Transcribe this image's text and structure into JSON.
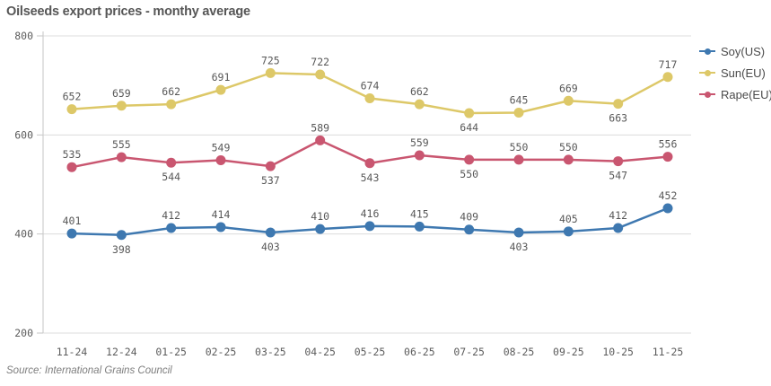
{
  "title": "Oilseeds export prices - monthy average",
  "source": "Source: International Grains Council",
  "legend": [
    {
      "label": "Soy(US)",
      "color": "#3e78b0"
    },
    {
      "label": "Sun(EU)",
      "color": "#ddc868"
    },
    {
      "label": "Rape(EU)",
      "color": "#c95670"
    }
  ],
  "colors": {
    "gridline": "#dcdcdc",
    "axis": "#c6c6c6",
    "tick": "#c6c6c6"
  },
  "chart_data": {
    "type": "line",
    "title": "Oilseeds export prices - monthy average",
    "categories": [
      "11-24",
      "12-24",
      "01-25",
      "02-25",
      "03-25",
      "04-25",
      "05-25",
      "06-25",
      "07-25",
      "08-25",
      "09-25",
      "10-25",
      "11-25"
    ],
    "series": [
      {
        "name": "Soy(US)",
        "color": "#3e78b0",
        "values": [
          401,
          398,
          412,
          414,
          403,
          410,
          416,
          415,
          409,
          403,
          405,
          412,
          452
        ],
        "label_side": [
          "above",
          "below",
          "above",
          "above",
          "below",
          "above",
          "above",
          "above",
          "above",
          "below",
          "above",
          "above",
          "above"
        ]
      },
      {
        "name": "Sun(EU)",
        "color": "#ddc868",
        "values": [
          652,
          659,
          662,
          691,
          725,
          722,
          674,
          662,
          644,
          645,
          669,
          663,
          717
        ],
        "label_side": [
          "above",
          "above",
          "above",
          "above",
          "above",
          "above",
          "above",
          "above",
          "below",
          "above",
          "above",
          "below",
          "above"
        ]
      },
      {
        "name": "Rape(EU)",
        "color": "#c95670",
        "values": [
          535,
          555,
          544,
          549,
          537,
          589,
          543,
          559,
          550,
          550,
          550,
          547,
          556
        ],
        "label_side": [
          "above",
          "above",
          "below",
          "above",
          "below",
          "above",
          "below",
          "above",
          "below",
          "above",
          "above",
          "below",
          "above"
        ]
      }
    ],
    "xlabel": "",
    "ylabel": "",
    "ylim": [
      200,
      800
    ],
    "yticks": [
      200,
      400,
      600,
      800
    ],
    "grid": true,
    "legend_position": "top-right",
    "source": "Source: International Grains Council"
  }
}
